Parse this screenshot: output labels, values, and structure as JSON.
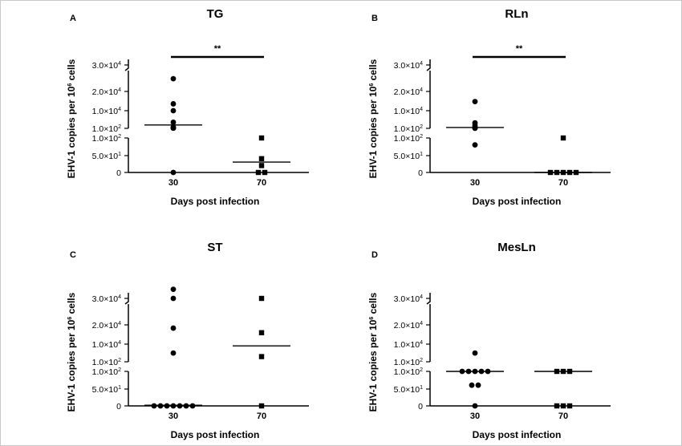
{
  "chart_data": [
    {
      "type": "scatter",
      "panel_label": "A",
      "title": "TG",
      "xlabel": "Days post infection",
      "ylabel": "EHV-1 copies per 10^6 cells",
      "categories": [
        "30",
        "70"
      ],
      "y_ticks": [
        "0",
        "5.0×10^1",
        "1.0×10^2",
        "1.0×10^2",
        "1.0×10^4",
        "2.0×10^4",
        "3.0×10^4"
      ],
      "series": [
        {
          "day": "30",
          "marker": "circle",
          "values": [
            0,
            200,
            250,
            300,
            800,
            3500,
            10000,
            13000,
            24000
          ],
          "median_line": 2000
        },
        {
          "day": "70",
          "marker": "square",
          "values": [
            0,
            0,
            20,
            40,
            100
          ],
          "median_line": 30
        }
      ],
      "significance": "**"
    },
    {
      "type": "scatter",
      "panel_label": "B",
      "title": "RLn",
      "xlabel": "Days post infection",
      "ylabel": "EHV-1 copies per 10^6 cells",
      "categories": [
        "30",
        "70"
      ],
      "y_ticks": [
        "0",
        "5.0×10^1",
        "1.0×10^2",
        "1.0×10^2",
        "1.0×10^4",
        "2.0×10^4",
        "3.0×10^4"
      ],
      "series": [
        {
          "day": "30",
          "marker": "circle",
          "values": [
            80,
            150,
            200,
            400,
            1000,
            1800,
            3200,
            14000
          ],
          "median_line": 600
        },
        {
          "day": "70",
          "marker": "square",
          "values": [
            0,
            0,
            0,
            0,
            0,
            100
          ],
          "median_line": 0
        }
      ],
      "significance": "**"
    },
    {
      "type": "scatter",
      "panel_label": "C",
      "title": "ST",
      "xlabel": "Days post infection",
      "ylabel": "EHV-1 copies per 10^6 cells",
      "categories": [
        "30",
        "70"
      ],
      "y_ticks": [
        "0",
        "5.0×10^1",
        "1.0×10^2",
        "1.0×10^2",
        "1.0×10^4",
        "2.0×10^4",
        "3.0×10^4"
      ],
      "series": [
        {
          "day": "30",
          "marker": "circle",
          "values": [
            0,
            0,
            0,
            0,
            0,
            0,
            0,
            5000,
            17000,
            30000,
            34000
          ],
          "median_line": 2
        },
        {
          "day": "70",
          "marker": "square",
          "values": [
            0,
            3000,
            15000,
            30000
          ],
          "median_line": 9000
        }
      ],
      "significance": ""
    },
    {
      "type": "scatter",
      "panel_label": "D",
      "title": "MesLn",
      "xlabel": "Days post infection",
      "ylabel": "EHV-1 copies per 10^6 cells",
      "categories": [
        "30",
        "70"
      ],
      "y_ticks": [
        "0",
        "5.0×10^1",
        "1.0×10^2",
        "1.0×10^2",
        "1.0×10^4",
        "2.0×10^4",
        "3.0×10^4"
      ],
      "series": [
        {
          "day": "30",
          "marker": "circle",
          "values": [
            0,
            60,
            60,
            100,
            100,
            100,
            100,
            100,
            5000
          ],
          "median_line": 100
        },
        {
          "day": "70",
          "marker": "square",
          "values": [
            0,
            0,
            0,
            100,
            100,
            100
          ],
          "median_line": 100
        }
      ],
      "significance": ""
    }
  ]
}
